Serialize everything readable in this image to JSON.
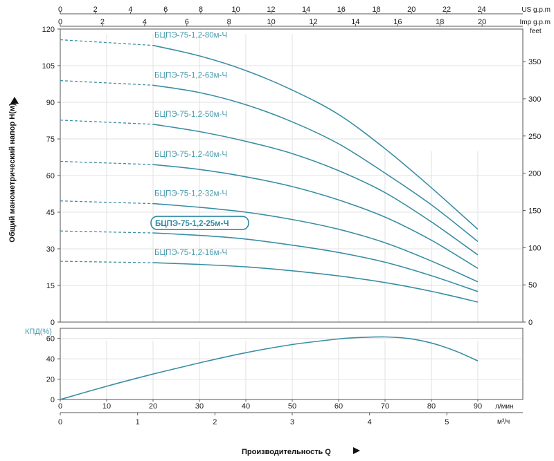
{
  "chart_data": [
    {
      "type": "line",
      "ylabel": "Общий манометрический напор Н(м)",
      "ylim": [
        0,
        120
      ],
      "yticks": [
        0,
        15,
        30,
        45,
        60,
        75,
        90,
        105,
        120
      ],
      "right_axis": {
        "label": "feet",
        "ticks": [
          0,
          50,
          100,
          150,
          200,
          250,
          300,
          350
        ]
      },
      "top_axis_us": {
        "label": "US g.p.m",
        "ticks": [
          0,
          2,
          4,
          6,
          8,
          10,
          12,
          14,
          16,
          18,
          20,
          22,
          24
        ]
      },
      "top_axis_imp": {
        "label": "Imp g.p.m",
        "ticks": [
          0,
          2,
          4,
          6,
          8,
          10,
          12,
          14,
          16,
          18,
          20
        ]
      },
      "x_unit": "л/мин",
      "xlim": [
        0,
        90
      ],
      "grid": true,
      "highlighted_series": "БЦПЭ-75-1,2-25м-Ч",
      "series": [
        {
          "name": "БЦПЭ-75-1,2-80м-Ч",
          "x": [
            0,
            20,
            30,
            40,
            50,
            60,
            70,
            80,
            90
          ],
          "y": [
            115.6,
            113.3,
            109,
            103,
            95,
            85,
            71,
            55,
            38
          ]
        },
        {
          "name": "БЦПЭ-75-1,2-63м-Ч",
          "x": [
            0,
            20,
            30,
            40,
            50,
            60,
            70,
            80,
            90
          ],
          "y": [
            98.9,
            97,
            94,
            89,
            82,
            73,
            61,
            48,
            33
          ]
        },
        {
          "name": "БЦПЭ-75-1,2-50м-Ч",
          "x": [
            0,
            20,
            30,
            40,
            50,
            60,
            70,
            80,
            90
          ],
          "y": [
            82.7,
            81,
            78,
            74,
            69,
            62,
            53,
            41,
            27.5
          ]
        },
        {
          "name": "БЦПЭ-75-1,2-40м-Ч",
          "x": [
            0,
            20,
            30,
            40,
            50,
            60,
            70,
            80,
            90
          ],
          "y": [
            65.8,
            64.5,
            62.5,
            59.5,
            55.5,
            50,
            43,
            33.5,
            22
          ]
        },
        {
          "name": "БЦПЭ-75-1,2-32м-Ч",
          "x": [
            0,
            20,
            30,
            40,
            50,
            60,
            70,
            80,
            90
          ],
          "y": [
            49.6,
            48.5,
            47,
            45,
            42,
            38,
            32.5,
            25,
            16.5
          ]
        },
        {
          "name": "БЦПЭ-75-1,2-25м-Ч",
          "x": [
            0,
            20,
            30,
            40,
            50,
            60,
            70,
            80,
            90
          ],
          "y": [
            37.3,
            36.5,
            35.5,
            34,
            31.5,
            28.5,
            24.5,
            19,
            12.5
          ]
        },
        {
          "name": "БЦПЭ-75-1,2-16м-Ч",
          "x": [
            0,
            20,
            30,
            40,
            50,
            60,
            70,
            80,
            90
          ],
          "y": [
            24.9,
            24.3,
            23.6,
            22.6,
            21,
            18.9,
            16.2,
            12.6,
            8.2
          ]
        }
      ]
    },
    {
      "type": "line",
      "ylabel": "КПД(%)",
      "ylim": [
        0,
        70
      ],
      "yticks": [
        0,
        20,
        40,
        60
      ],
      "xlim": [
        0,
        90
      ],
      "xticks": [
        0,
        10,
        20,
        30,
        40,
        50,
        60,
        70,
        80,
        90
      ],
      "x_unit": "л/мин",
      "grid": true,
      "series": [
        {
          "x": [
            0,
            10,
            20,
            30,
            40,
            50,
            60,
            65,
            70,
            75,
            80,
            85,
            90
          ],
          "y": [
            0,
            13,
            25,
            36,
            46,
            54,
            59.5,
            61,
            61.5,
            60,
            55.5,
            48,
            38
          ]
        }
      ]
    },
    {
      "type": "axis",
      "x_unit": "м³/ч",
      "xticks": [
        0,
        1,
        2,
        3,
        4,
        5
      ]
    }
  ],
  "xlabel": "Производительность Q"
}
